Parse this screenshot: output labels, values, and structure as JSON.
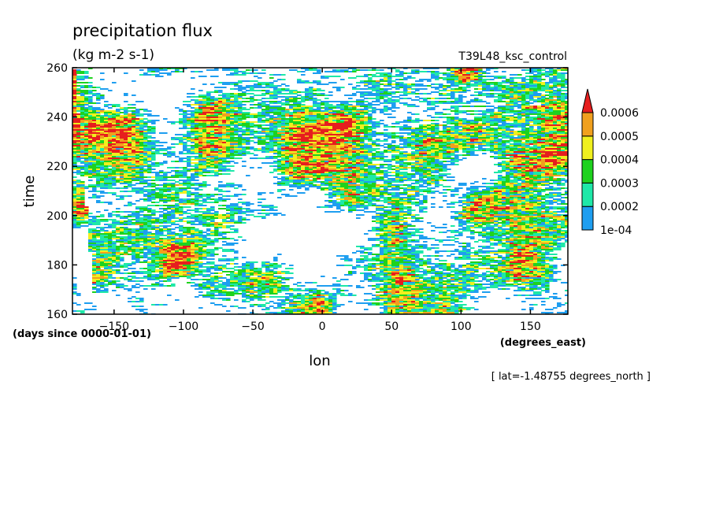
{
  "chart_data": {
    "type": "heatmap",
    "title": "precipitation flux",
    "units": "(kg m-2 s-1)",
    "experiment": "T39L48_ksc_control",
    "xlabel": "lon",
    "ylabel": "time",
    "x_units": "(degrees_east)",
    "y_units": "(days since 0000-01-01)",
    "slice_note": "[ lat=-1.48755 degrees_north ]",
    "xlim": [
      -180,
      177
    ],
    "ylim": [
      160,
      260
    ],
    "x_ticks": [
      {
        "value": -150,
        "label": "-150"
      },
      {
        "value": -100,
        "label": "-100"
      },
      {
        "value": -50,
        "label": "-50"
      },
      {
        "value": 0,
        "label": "0"
      },
      {
        "value": 50,
        "label": "50"
      },
      {
        "value": 100,
        "label": "100"
      },
      {
        "value": 150,
        "label": "150"
      }
    ],
    "y_ticks": [
      {
        "value": 160,
        "label": "160"
      },
      {
        "value": 180,
        "label": "180"
      },
      {
        "value": 200,
        "label": "200"
      },
      {
        "value": 220,
        "label": "220"
      },
      {
        "value": 240,
        "label": "240"
      },
      {
        "value": 260,
        "label": "260"
      }
    ],
    "colorbar": {
      "levels": [
        0.0001,
        0.0002,
        0.0003,
        0.0004,
        0.0005,
        0.0006
      ],
      "labels": [
        "1e-04",
        "0.0002",
        "0.0003",
        "0.0004",
        "0.0005",
        "0.0006"
      ],
      "colors": [
        "#1e9ef0",
        "#1ee8a8",
        "#1ed21e",
        "#f0f01e",
        "#f0a01e",
        "#e61e1e"
      ],
      "extend": "max"
    },
    "grid": false
  }
}
